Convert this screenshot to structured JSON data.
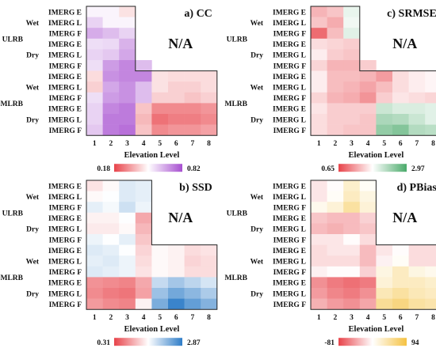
{
  "chart_data": [
    {
      "type": "heatmap",
      "title": "a) CC",
      "na_label": "N/A",
      "xlabel": "Elevation Level",
      "x": [
        "1",
        "2",
        "3",
        "4",
        "5",
        "6",
        "7",
        "8"
      ],
      "rows": [
        "IMERG E",
        "IMERG L",
        "IMERG F",
        "IMERG E",
        "IMERG L",
        "IMERG F",
        "IMERG E",
        "IMERG L",
        "IMERG F",
        "IMERG E",
        "IMERG L",
        "IMERG F"
      ],
      "groups": [
        "ULRB",
        "MLRB"
      ],
      "subgroups": [
        "Wet",
        "Dry",
        "Wet",
        "Dry"
      ],
      "colorbar": {
        "min_label": "0.18",
        "max_label": "0.82",
        "low_color": "#e8434a",
        "mid_color": "#ffffff",
        "high_color": "#a74fd0"
      },
      "values": [
        [
          0.52,
          0.52,
          0.45,
          null,
          null,
          null,
          null,
          null
        ],
        [
          0.58,
          0.52,
          0.52,
          null,
          null,
          null,
          null,
          null
        ],
        [
          0.65,
          0.62,
          0.58,
          null,
          null,
          null,
          null,
          null
        ],
        [
          0.56,
          0.57,
          0.64,
          null,
          null,
          null,
          null,
          null
        ],
        [
          0.58,
          0.6,
          0.66,
          null,
          null,
          null,
          null,
          null
        ],
        [
          0.56,
          0.68,
          0.72,
          0.62,
          null,
          null,
          null,
          null
        ],
        [
          0.44,
          0.7,
          0.72,
          0.72,
          0.45,
          0.44,
          0.44,
          0.44
        ],
        [
          0.42,
          0.66,
          0.7,
          0.62,
          0.45,
          0.42,
          0.42,
          0.44
        ],
        [
          0.56,
          0.68,
          0.7,
          0.62,
          0.42,
          0.42,
          0.4,
          0.42
        ],
        [
          0.58,
          0.72,
          0.74,
          0.4,
          0.3,
          0.3,
          0.3,
          0.32
        ],
        [
          0.58,
          0.74,
          0.74,
          0.38,
          0.26,
          0.28,
          0.28,
          0.3
        ],
        [
          0.6,
          0.74,
          0.76,
          0.4,
          0.3,
          0.32,
          0.32,
          0.34
        ]
      ]
    },
    {
      "type": "heatmap",
      "title": "c) SRMSE",
      "na_label": "N/A",
      "xlabel": "Elevation Level",
      "x": [
        "1",
        "2",
        "3",
        "4",
        "5",
        "6",
        "7",
        "8"
      ],
      "rows": [
        "IMERG E",
        "IMERG L",
        "IMERG F",
        "IMERG E",
        "IMERG L",
        "IMERG F",
        "IMERG E",
        "IMERG L",
        "IMERG F",
        "IMERG E",
        "IMERG L",
        "IMERG F"
      ],
      "groups": [
        "ULRB",
        "MLRB"
      ],
      "subgroups": [
        "Wet",
        "Dry",
        "Wet",
        "Dry"
      ],
      "colorbar": {
        "min_label": "0.65",
        "max_label": "2.97",
        "low_color": "#e8434a",
        "mid_color": "#ffffff",
        "high_color": "#4aaa6a"
      },
      "values": [
        [
          1.35,
          1.45,
          1.95,
          null,
          null,
          null,
          null,
          null
        ],
        [
          1.45,
          1.3,
          1.9,
          null,
          null,
          null,
          null,
          null
        ],
        [
          0.9,
          1.4,
          2.0,
          null,
          null,
          null,
          null,
          null
        ],
        [
          1.6,
          1.55,
          1.5,
          null,
          null,
          null,
          null,
          null
        ],
        [
          1.7,
          1.5,
          1.45,
          null,
          null,
          null,
          null,
          null
        ],
        [
          1.55,
          1.35,
          1.35,
          1.5,
          null,
          null,
          null,
          null
        ],
        [
          1.7,
          1.4,
          1.4,
          1.35,
          1.2,
          1.6,
          1.7,
          1.75
        ],
        [
          1.7,
          1.4,
          1.35,
          1.25,
          1.4,
          1.6,
          1.7,
          1.75
        ],
        [
          1.55,
          1.35,
          1.3,
          1.15,
          1.5,
          1.65,
          1.6,
          1.55
        ],
        [
          1.65,
          1.5,
          1.5,
          1.5,
          2.15,
          2.05,
          2.05,
          2.0
        ],
        [
          1.6,
          1.5,
          1.5,
          1.45,
          2.35,
          2.3,
          2.15,
          2.0
        ],
        [
          1.6,
          1.5,
          1.45,
          1.45,
          2.5,
          2.6,
          2.3,
          2.25
        ]
      ]
    },
    {
      "type": "heatmap",
      "title": "b) SSD",
      "na_label": "N/A",
      "xlabel": "Elevation Level",
      "x": [
        "1",
        "2",
        "3",
        "4",
        "5",
        "6",
        "7",
        "8"
      ],
      "rows": [
        "IMERG E",
        "IMERG L",
        "IMERG F",
        "IMERG E",
        "IMERG L",
        "IMERG F",
        "IMERG E",
        "IMERG L",
        "IMERG F",
        "IMERG E",
        "IMERG L",
        "IMERG F"
      ],
      "groups": [
        "ULRB",
        "MLRB"
      ],
      "subgroups": [
        "Wet",
        "Dry",
        "Wet",
        "Dry"
      ],
      "colorbar": {
        "min_label": "0.31",
        "max_label": "2.87",
        "low_color": "#e8434a",
        "mid_color": "#ffffff",
        "high_color": "#2f7dc8"
      },
      "values": [
        [
          1.4,
          1.55,
          1.8,
          1.75,
          null,
          null,
          null,
          null
        ],
        [
          1.55,
          1.6,
          1.8,
          1.75,
          null,
          null,
          null,
          null
        ],
        [
          1.75,
          1.65,
          1.9,
          1.7,
          null,
          null,
          null,
          null
        ],
        [
          1.5,
          1.5,
          1.6,
          1.0,
          null,
          null,
          null,
          null
        ],
        [
          1.45,
          1.45,
          1.55,
          1.1,
          null,
          null,
          null,
          null
        ],
        [
          1.7,
          1.6,
          1.75,
          1.2,
          null,
          null,
          null,
          null
        ],
        [
          1.8,
          1.75,
          1.6,
          1.3,
          1.55,
          1.5,
          1.35,
          1.4
        ],
        [
          1.75,
          1.8,
          1.7,
          1.35,
          1.55,
          1.5,
          1.3,
          1.35
        ],
        [
          1.8,
          1.75,
          1.7,
          1.4,
          1.55,
          1.5,
          1.35,
          1.35
        ],
        [
          0.85,
          0.8,
          0.75,
          1.0,
          1.95,
          2.15,
          2.0,
          1.85
        ],
        [
          0.8,
          0.7,
          0.65,
          0.95,
          2.2,
          2.45,
          2.3,
          2.1
        ],
        [
          0.9,
          0.8,
          0.75,
          1.5,
          2.4,
          2.8,
          2.55,
          2.35
        ]
      ]
    },
    {
      "type": "heatmap",
      "title": "d) PBias",
      "na_label": "N/A",
      "xlabel": "Elevation Level",
      "x": [
        "1",
        "2",
        "3",
        "4",
        "5",
        "6",
        "7",
        "8"
      ],
      "rows": [
        "IMERG E",
        "IMERG L",
        "IMERG F",
        "IMERG E",
        "IMERG L",
        "IMERG F",
        "IMERG E",
        "IMERG L",
        "IMERG F",
        "IMERG E",
        "IMERG L",
        "IMERG F"
      ],
      "groups": [
        "ULRB",
        "MLRB"
      ],
      "subgroups": [
        "Wet",
        "Dry",
        "Wet",
        "Dry"
      ],
      "colorbar": {
        "min_label": "-81",
        "max_label": "94",
        "low_color": "#e8434a",
        "mid_color": "#ffffff",
        "high_color": "#f5c242"
      },
      "values": [
        [
          -5,
          5,
          30,
          10,
          null,
          null,
          null,
          null
        ],
        [
          -5,
          10,
          35,
          20,
          null,
          null,
          null,
          null
        ],
        [
          15,
          25,
          50,
          25,
          null,
          null,
          null,
          null
        ],
        [
          -20,
          -25,
          -25,
          -15,
          null,
          null,
          null,
          null
        ],
        [
          -25,
          -30,
          -25,
          -20,
          null,
          null,
          null,
          null
        ],
        [
          -5,
          -5,
          5,
          -10,
          null,
          null,
          null,
          null
        ],
        [
          -10,
          -5,
          -5,
          -25,
          -5,
          5,
          -10,
          -10
        ],
        [
          -10,
          -10,
          -10,
          -25,
          0,
          10,
          -10,
          -10
        ],
        [
          0,
          5,
          5,
          -15,
          20,
          35,
          20,
          15
        ],
        [
          -45,
          -55,
          -60,
          -55,
          25,
          35,
          35,
          30
        ],
        [
          -40,
          -50,
          -55,
          -45,
          40,
          50,
          40,
          35
        ],
        [
          -30,
          -40,
          -45,
          -35,
          55,
          65,
          50,
          45
        ]
      ]
    }
  ]
}
